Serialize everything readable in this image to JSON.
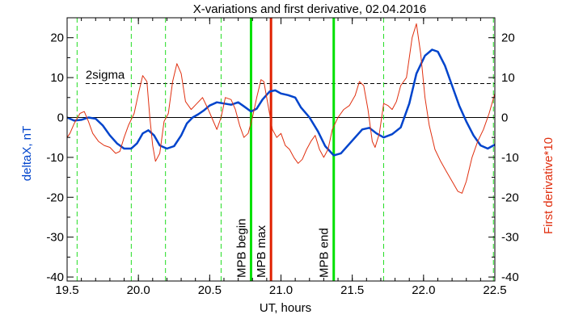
{
  "chart_data": {
    "type": "line",
    "title": "X-variations and first derivative, 02.04.2016",
    "xlabel": "UT, hours",
    "ylabel_left": "deltaX, nT",
    "ylabel_right": "First derivative*10",
    "xlim": [
      19.5,
      22.5
    ],
    "ylim": [
      -41,
      25
    ],
    "x_ticks": [
      "19.5",
      "20.0",
      "20.5",
      "21.0",
      "21.5",
      "22.0",
      "22.5"
    ],
    "y_ticks_left": [
      "20",
      "10",
      "0",
      "-10",
      "-20",
      "-30",
      "-40"
    ],
    "y_ticks_right": [
      "20",
      "10",
      "0",
      "-10",
      "-20",
      "-30",
      "-40"
    ],
    "zero_line": 0,
    "sigma_line": {
      "label": "2sigma",
      "value": 8.5
    },
    "green_dashed_lines": [
      19.57,
      19.95,
      20.19,
      20.58,
      21.72,
      22.49
    ],
    "markers": [
      {
        "label": "MPB begin",
        "x": 20.79,
        "color": "#00e000"
      },
      {
        "label": "MPB max",
        "x": 20.93,
        "color": "#e02000"
      },
      {
        "label": "MPB end",
        "x": 21.37,
        "color": "#00e000"
      }
    ],
    "series": [
      {
        "color": "#0044cc",
        "points": [
          [
            19.5,
            0
          ],
          [
            19.55,
            -0.8
          ],
          [
            19.6,
            -0.6
          ],
          [
            19.65,
            0
          ],
          [
            19.7,
            -0.3
          ],
          [
            19.75,
            -2
          ],
          [
            19.8,
            -4.5
          ],
          [
            19.85,
            -6.5
          ],
          [
            19.9,
            -7.8
          ],
          [
            19.95,
            -7.8
          ],
          [
            19.99,
            -6.5
          ],
          [
            20.03,
            -4
          ],
          [
            20.07,
            -3.2
          ],
          [
            20.11,
            -4.5
          ],
          [
            20.15,
            -7
          ],
          [
            20.2,
            -7.8
          ],
          [
            20.25,
            -7.2
          ],
          [
            20.3,
            -4.5
          ],
          [
            20.34,
            -1.5
          ],
          [
            20.38,
            0
          ],
          [
            20.42,
            0.8
          ],
          [
            20.46,
            1.8
          ],
          [
            20.5,
            3
          ],
          [
            20.55,
            3.8
          ],
          [
            20.6,
            3.5
          ],
          [
            20.65,
            3.2
          ],
          [
            20.7,
            3.8
          ],
          [
            20.74,
            2.8
          ],
          [
            20.79,
            1.5
          ],
          [
            20.83,
            2.2
          ],
          [
            20.87,
            4.5
          ],
          [
            20.92,
            6.5
          ],
          [
            20.96,
            6.8
          ],
          [
            21,
            6
          ],
          [
            21.05,
            5.6
          ],
          [
            21.1,
            5
          ],
          [
            21.14,
            2.5
          ],
          [
            21.2,
            0
          ],
          [
            21.26,
            -3.5
          ],
          [
            21.31,
            -7.2
          ],
          [
            21.37,
            -9.5
          ],
          [
            21.42,
            -9
          ],
          [
            21.47,
            -7
          ],
          [
            21.52,
            -5
          ],
          [
            21.57,
            -3
          ],
          [
            21.62,
            -2.6
          ],
          [
            21.67,
            -4
          ],
          [
            21.72,
            -5
          ],
          [
            21.78,
            -4.2
          ],
          [
            21.84,
            -2.5
          ],
          [
            21.9,
            3.5
          ],
          [
            21.95,
            11
          ],
          [
            22.01,
            15.5
          ],
          [
            22.06,
            17
          ],
          [
            22.1,
            16.5
          ],
          [
            22.15,
            13
          ],
          [
            22.2,
            8
          ],
          [
            22.25,
            3
          ],
          [
            22.3,
            -1
          ],
          [
            22.35,
            -4.5
          ],
          [
            22.4,
            -7
          ],
          [
            22.45,
            -7.8
          ],
          [
            22.5,
            -6.8
          ]
        ]
      },
      {
        "color": "#e03010",
        "points": [
          [
            19.5,
            -5
          ],
          [
            19.52,
            -4
          ],
          [
            19.55,
            -1.5
          ],
          [
            19.59,
            1
          ],
          [
            19.62,
            1.5
          ],
          [
            19.65,
            -1
          ],
          [
            19.68,
            -4
          ],
          [
            19.72,
            -6
          ],
          [
            19.76,
            -7
          ],
          [
            19.8,
            -7.5
          ],
          [
            19.84,
            -9
          ],
          [
            19.87,
            -8.5
          ],
          [
            19.9,
            -5
          ],
          [
            19.93,
            -2
          ],
          [
            19.97,
            1
          ],
          [
            20,
            6
          ],
          [
            20.03,
            10.5
          ],
          [
            20.06,
            9
          ],
          [
            20.08,
            0
          ],
          [
            20.1,
            -7
          ],
          [
            20.12,
            -11
          ],
          [
            20.15,
            -9
          ],
          [
            20.18,
            -1
          ],
          [
            20.21,
            1
          ],
          [
            20.24,
            9
          ],
          [
            20.27,
            13.5
          ],
          [
            20.3,
            11
          ],
          [
            20.33,
            4
          ],
          [
            20.37,
            2
          ],
          [
            20.41,
            3.5
          ],
          [
            20.45,
            5
          ],
          [
            20.49,
            2
          ],
          [
            20.52,
            -0.5
          ],
          [
            20.55,
            -3
          ],
          [
            20.58,
            0
          ],
          [
            20.61,
            5
          ],
          [
            20.65,
            4.5
          ],
          [
            20.68,
            2
          ],
          [
            20.71,
            -2
          ],
          [
            20.74,
            -5
          ],
          [
            20.77,
            -4
          ],
          [
            20.8,
            0
          ],
          [
            20.83,
            5
          ],
          [
            20.86,
            9.5
          ],
          [
            20.88,
            9
          ],
          [
            20.91,
            3
          ],
          [
            20.94,
            -3
          ],
          [
            20.97,
            -5
          ],
          [
            21,
            -4
          ],
          [
            21.03,
            -7
          ],
          [
            21.06,
            -8
          ],
          [
            21.09,
            -10
          ],
          [
            21.12,
            -11.5
          ],
          [
            21.15,
            -10.5
          ],
          [
            21.18,
            -8
          ],
          [
            21.21,
            -6
          ],
          [
            21.24,
            -4.5
          ],
          [
            21.27,
            -8
          ],
          [
            21.3,
            -10
          ],
          [
            21.33,
            -8
          ],
          [
            21.36,
            -3
          ],
          [
            21.4,
            0
          ],
          [
            21.44,
            2
          ],
          [
            21.48,
            3
          ],
          [
            21.52,
            5.5
          ],
          [
            21.55,
            9
          ],
          [
            21.58,
            8
          ],
          [
            21.61,
            2
          ],
          [
            21.64,
            -6
          ],
          [
            21.66,
            -7.5
          ],
          [
            21.69,
            -4
          ],
          [
            21.72,
            3.5
          ],
          [
            21.75,
            3
          ],
          [
            21.78,
            2
          ],
          [
            21.81,
            4
          ],
          [
            21.84,
            8
          ],
          [
            21.88,
            10
          ],
          [
            21.92,
            20
          ],
          [
            21.95,
            23.5
          ],
          [
            21.98,
            16
          ],
          [
            22.01,
            5
          ],
          [
            22.04,
            -2
          ],
          [
            22.08,
            -8
          ],
          [
            22.12,
            -11
          ],
          [
            22.16,
            -13.5
          ],
          [
            22.2,
            -16
          ],
          [
            22.24,
            -18.5
          ],
          [
            22.27,
            -19
          ],
          [
            22.3,
            -16
          ],
          [
            22.34,
            -10
          ],
          [
            22.38,
            -6
          ],
          [
            22.42,
            -3
          ],
          [
            22.46,
            1
          ],
          [
            22.5,
            6
          ]
        ]
      }
    ]
  }
}
